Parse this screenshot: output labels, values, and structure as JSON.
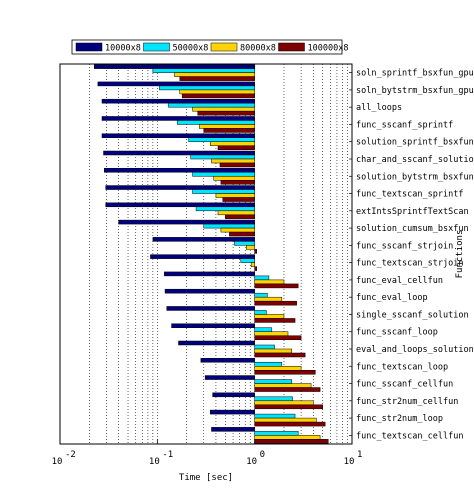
{
  "chart_data": {
    "type": "bar",
    "orientation": "horizontal",
    "xscale": "log",
    "xlim": [
      0.01,
      10
    ],
    "xticks": [
      {
        "base": "10",
        "exp": "-2",
        "value": 0.01
      },
      {
        "base": "10",
        "exp": "-1",
        "value": 0.1
      },
      {
        "base": "10",
        "exp": "0",
        "value": 1
      },
      {
        "base": "10",
        "exp": "1",
        "value": 10
      }
    ],
    "xlabel": "Time [sec]",
    "ylabel": "Functions",
    "grid": "x-dotted",
    "legend_position": "top",
    "categories": [
      "soln_sprintf_bsxfun_gpu",
      "soln_bytstrm_bsxfun_gpu",
      "all_loops",
      "func_sscanf_sprintf",
      "solution_sprintf_bsxfun",
      "char_and_sscanf_solution",
      "solution_bytstrm_bsxfun",
      "func_textscan_sprintf",
      "extIntsSprintfTextScan",
      "solution_cumsum_bsxfun",
      "func_sscanf_strjoin",
      "func_textscan_strjoin",
      "func_eval_cellfun",
      "func_eval_loop",
      "single_sscanf_solution",
      "func_sscanf_loop",
      "eval_and_loops_solution",
      "func_textscan_loop",
      "func_sscanf_cellfun",
      "func_str2num_cellfun",
      "func_str2num_loop",
      "func_textscan_cellfun"
    ],
    "series": [
      {
        "name": "10000x8",
        "color": "#00007f",
        "values": [
          0.0225,
          0.0245,
          0.027,
          0.027,
          0.027,
          0.028,
          0.0285,
          0.0295,
          0.0295,
          0.04,
          0.09,
          0.085,
          0.118,
          0.12,
          0.125,
          0.14,
          0.165,
          0.28,
          0.31,
          0.37,
          0.35,
          0.36
        ]
      },
      {
        "name": "50000x8",
        "color": "#00e5ff",
        "values": [
          0.09,
          0.105,
          0.13,
          0.16,
          0.21,
          0.22,
          0.23,
          0.23,
          0.25,
          0.3,
          0.62,
          0.72,
          1.4,
          1.35,
          1.32,
          1.5,
          1.6,
          1.9,
          2.4,
          2.45,
          2.6,
          2.8
        ]
      },
      {
        "name": "80000x8",
        "color": "#ffd400",
        "values": [
          0.15,
          0.17,
          0.23,
          0.27,
          0.35,
          0.36,
          0.38,
          0.4,
          0.42,
          0.45,
          0.82,
          0.92,
          2.0,
          1.9,
          2.0,
          2.2,
          2.4,
          3.0,
          3.8,
          4.0,
          4.3,
          4.7
        ]
      },
      {
        "name": "100000x8",
        "color": "#7f0000",
        "values": [
          0.17,
          0.18,
          0.26,
          0.3,
          0.42,
          0.44,
          0.45,
          0.47,
          0.5,
          0.55,
          1.05,
          1.05,
          2.8,
          2.7,
          2.6,
          3.0,
          3.3,
          4.2,
          4.7,
          5.0,
          5.3,
          5.7
        ]
      }
    ]
  }
}
